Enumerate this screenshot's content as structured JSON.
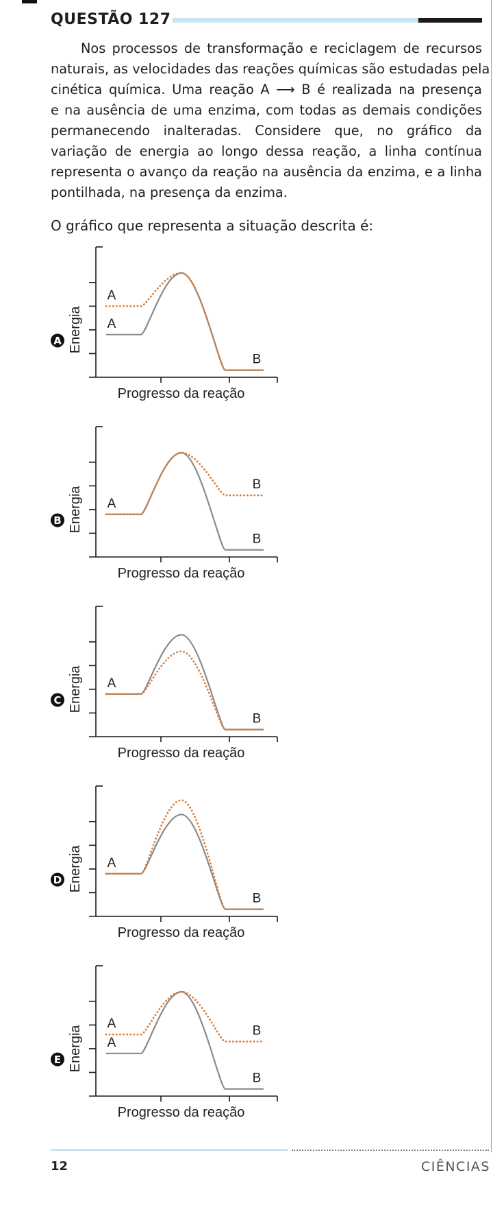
{
  "question": {
    "title": "QUESTÃO 127",
    "stem_lines": [
      "Nos processos de transformação e reciclagem de recursos",
      "naturais, as velocidades das reações químicas são estudadas pela",
      "cinética química. Uma reação A ⟶ B é realizada na presença",
      "e na ausência de uma enzima, com todas as demais condições",
      "permanecendo inalteradas. Considere que, no gráfico da",
      "variação de energia ao longo dessa reação, a linha contínua",
      "representa o avanço da reação na ausência da enzima, e a linha",
      "pontilhada, na presença da enzima."
    ],
    "prompt": "O gráfico que representa a situação descrita é:"
  },
  "colors": {
    "solid_line": "#8a8a8a",
    "dotted_line": "#e07a2e",
    "axis": "#1a1a1a",
    "header_bar": "#c7e4f0"
  },
  "options": [
    {
      "letter": "A",
      "chart_data": {
        "type": "line",
        "ylabel": "Energia",
        "xlabel": "Progresso da reação",
        "series": [
          {
            "style": "solid",
            "levels": {
              "reactant": 1.8,
              "peak": 4.4,
              "product": 0.3
            }
          },
          {
            "style": "dotted",
            "levels": {
              "reactant": 3.0,
              "peak": 4.4,
              "product": 0.3
            }
          }
        ],
        "annotations": [
          {
            "text": "A",
            "series": "dotted",
            "at": "reactant"
          },
          {
            "text": "A",
            "series": "solid",
            "at": "reactant"
          },
          {
            "text": "B",
            "series": "both",
            "at": "product"
          }
        ]
      }
    },
    {
      "letter": "B",
      "chart_data": {
        "type": "line",
        "ylabel": "Energia",
        "xlabel": "Progresso da reação",
        "series": [
          {
            "style": "solid",
            "levels": {
              "reactant": 1.8,
              "peak": 4.4,
              "product": 0.3
            }
          },
          {
            "style": "dotted",
            "levels": {
              "reactant": 1.8,
              "peak": 4.4,
              "product": 2.6
            }
          }
        ],
        "annotations": [
          {
            "text": "A",
            "series": "both",
            "at": "reactant"
          },
          {
            "text": "B",
            "series": "dotted",
            "at": "product"
          },
          {
            "text": "B",
            "series": "solid",
            "at": "product"
          }
        ]
      }
    },
    {
      "letter": "C",
      "chart_data": {
        "type": "line",
        "ylabel": "Energia",
        "xlabel": "Progresso da reação",
        "series": [
          {
            "style": "solid",
            "levels": {
              "reactant": 1.8,
              "peak": 4.3,
              "product": 0.3
            }
          },
          {
            "style": "dotted",
            "levels": {
              "reactant": 1.8,
              "peak": 3.6,
              "product": 0.3
            }
          }
        ],
        "annotations": [
          {
            "text": "A",
            "series": "both",
            "at": "reactant"
          },
          {
            "text": "B",
            "series": "both",
            "at": "product"
          }
        ]
      }
    },
    {
      "letter": "D",
      "chart_data": {
        "type": "line",
        "ylabel": "Energia",
        "xlabel": "Progresso da reação",
        "series": [
          {
            "style": "solid",
            "levels": {
              "reactant": 1.8,
              "peak": 4.3,
              "product": 0.3
            }
          },
          {
            "style": "dotted",
            "levels": {
              "reactant": 1.8,
              "peak": 4.9,
              "product": 0.3
            }
          }
        ],
        "annotations": [
          {
            "text": "A",
            "series": "both",
            "at": "reactant"
          },
          {
            "text": "B",
            "series": "both",
            "at": "product"
          }
        ]
      }
    },
    {
      "letter": "E",
      "chart_data": {
        "type": "line",
        "ylabel": "Energia",
        "xlabel": "Progresso da reação",
        "series": [
          {
            "style": "solid",
            "levels": {
              "reactant": 1.8,
              "peak": 4.4,
              "product": 0.3
            }
          },
          {
            "style": "dotted",
            "levels": {
              "reactant": 2.6,
              "peak": 4.4,
              "product": 2.3
            }
          }
        ],
        "annotations": [
          {
            "text": "A",
            "series": "dotted",
            "at": "reactant"
          },
          {
            "text": "A",
            "series": "solid",
            "at": "reactant"
          },
          {
            "text": "B",
            "series": "dotted",
            "at": "product"
          },
          {
            "text": "B",
            "series": "solid",
            "at": "product"
          }
        ]
      }
    }
  ],
  "footer": {
    "page_number": "12",
    "section": "CIÊNCIAS"
  }
}
